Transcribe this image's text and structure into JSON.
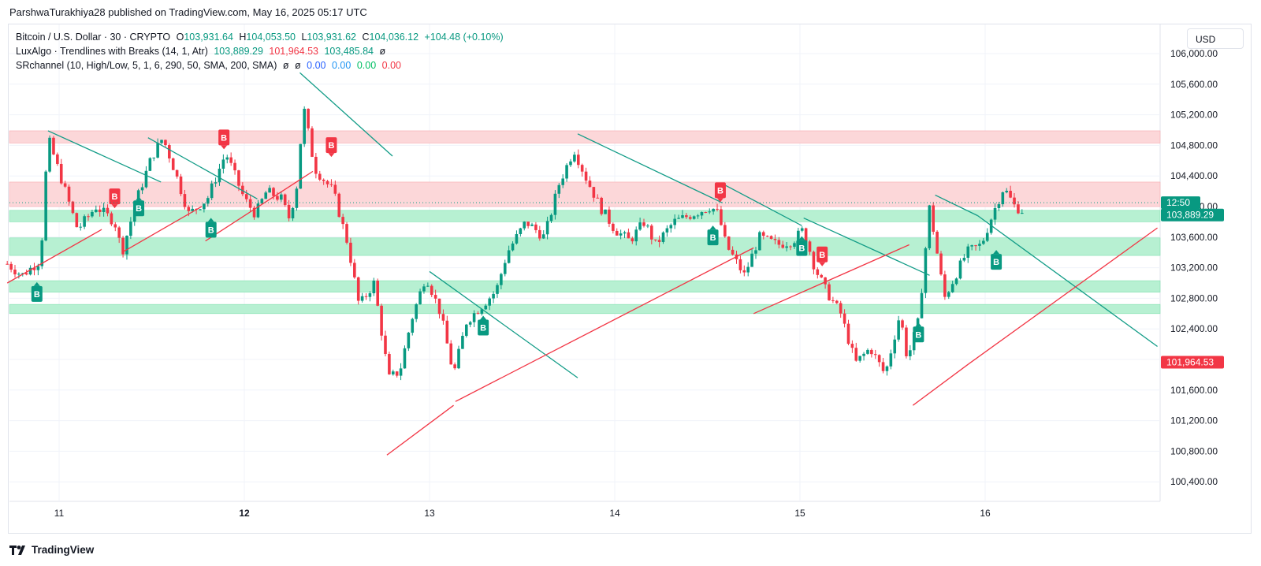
{
  "header": {
    "published": "ParshwaTurakhiya28 published on TradingView.com, May 16, 2025 05:17 UTC"
  },
  "legend": {
    "line1": {
      "symbol": "Bitcoin / U.S. Dollar · 30 · CRYPTO",
      "o_label": "O",
      "o": "103,931.64",
      "h_label": "H",
      "h": "104,053.50",
      "l_label": "L",
      "l": "103,931.62",
      "c_label": "C",
      "c": "104,036.12",
      "change": "+104.48 (+0.10%)"
    },
    "line2": {
      "name": "LuxAlgo · Trendlines with Breaks (14, 1, Atr)",
      "v1": "103,889.29",
      "v2": "101,964.53",
      "v3": "103,485.84",
      "v4": "ø"
    },
    "line3": {
      "name": "SRchannel (10, High/Low, 5, 1, 6, 290, 50, SMA, 200, SMA)",
      "s1": "ø",
      "s2": "ø",
      "v1": "0.00",
      "v2": "0.00",
      "v3": "0.00",
      "v4": "0.00"
    }
  },
  "currency_button": "USD",
  "footer": {
    "brand": "TradingView"
  },
  "colors": {
    "up": "#089981",
    "down": "#f23645",
    "resistance_zone": "#fcd7d9",
    "support_zone": "#b7f0d2",
    "trendline_down": "#129c87",
    "trendline_up": "#f23645"
  },
  "chart_data": {
    "type": "candlestick",
    "ylim": [
      100000,
      106200
    ],
    "y_ticks": [
      100400,
      100800,
      101200,
      101600,
      102000,
      102400,
      102800,
      103200,
      103600,
      104000,
      104400,
      104800,
      105200,
      105600,
      106000
    ],
    "y_tick_labels": [
      "100,400.00",
      "100,800.00",
      "101,200.00",
      "101,600.00",
      "102,000.00",
      "102,400.00",
      "102,800.00",
      "103,200.00",
      "103,600.00",
      "104,000.00",
      "104,400.00",
      "104,800.00",
      "105,200.00",
      "105,600.00",
      "106,000.00"
    ],
    "x_ticks": [
      "11",
      "12",
      "13",
      "14",
      "15",
      "16"
    ],
    "price_labels": [
      {
        "text": "12:50",
        "value": 104050,
        "color": "#089981"
      },
      {
        "text": "103,889.29",
        "value": 103889.29,
        "color": "#089981"
      },
      {
        "text": "101,964.53",
        "value": 101964.53,
        "color": "#f23645"
      }
    ],
    "zones": [
      {
        "from": 104830,
        "to": 104990,
        "kind": "resistance"
      },
      {
        "from": 104000,
        "to": 104320,
        "kind": "resistance"
      },
      {
        "from": 103800,
        "to": 103950,
        "kind": "support"
      },
      {
        "from": 103360,
        "to": 103590,
        "kind": "support"
      },
      {
        "from": 102880,
        "to": 103030,
        "kind": "support"
      },
      {
        "from": 102600,
        "to": 102720,
        "kind": "support"
      }
    ],
    "path": [
      [
        10.72,
        103250
      ],
      [
        10.8,
        103100
      ],
      [
        10.9,
        103300
      ],
      [
        10.94,
        104900
      ],
      [
        11.02,
        104300
      ],
      [
        11.1,
        103700
      ],
      [
        11.2,
        104000
      ],
      [
        11.3,
        103800
      ],
      [
        11.34,
        103400
      ],
      [
        11.42,
        104100
      ],
      [
        11.5,
        104650
      ],
      [
        11.56,
        104900
      ],
      [
        11.62,
        104500
      ],
      [
        11.7,
        103900
      ],
      [
        11.8,
        104100
      ],
      [
        11.9,
        104700
      ],
      [
        12.0,
        104100
      ],
      [
        12.06,
        103900
      ],
      [
        12.12,
        104200
      ],
      [
        12.2,
        104100
      ],
      [
        12.24,
        103850
      ],
      [
        12.28,
        104200
      ],
      [
        12.32,
        105300
      ],
      [
        12.38,
        104500
      ],
      [
        12.48,
        104200
      ],
      [
        12.56,
        103500
      ],
      [
        12.62,
        102700
      ],
      [
        12.7,
        103000
      ],
      [
        12.78,
        101750
      ],
      [
        12.84,
        101850
      ],
      [
        12.9,
        102500
      ],
      [
        12.98,
        103100
      ],
      [
        13.06,
        102600
      ],
      [
        13.13,
        101800
      ],
      [
        13.2,
        102500
      ],
      [
        13.28,
        102700
      ],
      [
        13.36,
        102900
      ],
      [
        13.42,
        103400
      ],
      [
        13.52,
        103800
      ],
      [
        13.62,
        103600
      ],
      [
        13.7,
        104300
      ],
      [
        13.78,
        104750
      ],
      [
        13.84,
        104400
      ],
      [
        13.92,
        104000
      ],
      [
        14.0,
        103700
      ],
      [
        14.08,
        103550
      ],
      [
        14.16,
        103800
      ],
      [
        14.22,
        103500
      ],
      [
        14.32,
        103800
      ],
      [
        14.42,
        103900
      ],
      [
        14.52,
        104000
      ],
      [
        14.56,
        103900
      ],
      [
        14.6,
        103500
      ],
      [
        14.7,
        103100
      ],
      [
        14.78,
        103600
      ],
      [
        14.88,
        103500
      ],
      [
        14.96,
        103550
      ],
      [
        15.02,
        103700
      ],
      [
        15.08,
        103200
      ],
      [
        15.14,
        102900
      ],
      [
        15.22,
        102600
      ],
      [
        15.3,
        101950
      ],
      [
        15.38,
        102150
      ],
      [
        15.46,
        101800
      ],
      [
        15.54,
        102600
      ],
      [
        15.58,
        102000
      ],
      [
        15.64,
        102500
      ],
      [
        15.7,
        104000
      ],
      [
        15.78,
        102800
      ],
      [
        15.86,
        103200
      ],
      [
        15.9,
        103400
      ],
      [
        15.98,
        103500
      ],
      [
        16.04,
        103900
      ],
      [
        16.1,
        104250
      ],
      [
        16.16,
        104000
      ],
      [
        16.2,
        103950
      ]
    ],
    "resistance_lines": [
      [
        10.94,
        104990,
        11.55,
        104320
      ],
      [
        11.48,
        104900,
        12.07,
        104100
      ],
      [
        12.3,
        105750,
        12.8,
        104660
      ],
      [
        13.0,
        103150,
        13.8,
        101760
      ],
      [
        13.8,
        104950,
        14.58,
        104050
      ],
      [
        14.58,
        104300,
        15.01,
        103750
      ],
      [
        15.02,
        103850,
        15.7,
        103100
      ],
      [
        15.73,
        104150,
        15.96,
        103880
      ],
      [
        15.96,
        103880,
        16.93,
        102170
      ]
    ],
    "support_lines": [
      [
        10.72,
        103000,
        11.23,
        103700
      ],
      [
        11.34,
        103400,
        11.77,
        104000
      ],
      [
        11.79,
        103550,
        12.37,
        104460
      ],
      [
        12.77,
        100750,
        13.13,
        101400
      ],
      [
        13.14,
        101450,
        14.75,
        103460
      ],
      [
        14.75,
        102600,
        15.59,
        103500
      ],
      [
        15.61,
        101400,
        15.91,
        101940
      ],
      [
        15.91,
        101940,
        16.93,
        103720
      ]
    ],
    "break_signals": [
      {
        "label": "B",
        "kind": "up",
        "x": 10.88,
        "value": 102960
      },
      {
        "label": "B",
        "kind": "down",
        "x": 11.3,
        "value": 104030
      },
      {
        "label": "B",
        "kind": "up",
        "x": 11.43,
        "value": 104080
      },
      {
        "label": "B",
        "kind": "up",
        "x": 11.82,
        "value": 103800
      },
      {
        "label": "B",
        "kind": "down",
        "x": 11.89,
        "value": 104800
      },
      {
        "label": "B",
        "kind": "down",
        "x": 12.47,
        "value": 104700
      },
      {
        "label": "B",
        "kind": "up",
        "x": 13.29,
        "value": 102520
      },
      {
        "label": "B",
        "kind": "up",
        "x": 14.53,
        "value": 103700
      },
      {
        "label": "B",
        "kind": "down",
        "x": 14.57,
        "value": 104110
      },
      {
        "label": "B",
        "kind": "up",
        "x": 15.01,
        "value": 103560
      },
      {
        "label": "B",
        "kind": "down",
        "x": 15.12,
        "value": 103270
      },
      {
        "label": "B",
        "kind": "up",
        "x": 15.64,
        "value": 102430
      },
      {
        "label": "B",
        "kind": "up",
        "x": 16.06,
        "value": 103380
      }
    ]
  }
}
